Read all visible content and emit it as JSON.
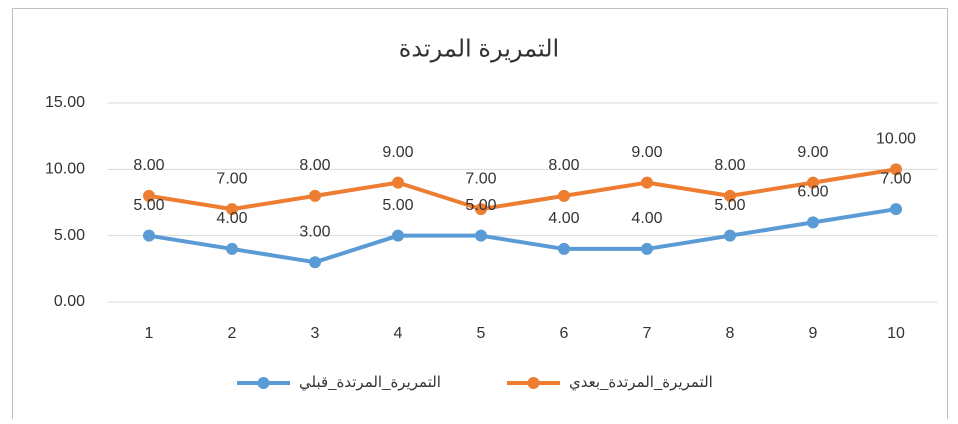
{
  "chart_data": {
    "type": "line",
    "title": "التمريرة المرتدة",
    "categories": [
      1,
      2,
      3,
      4,
      5,
      6,
      7,
      8,
      9,
      10
    ],
    "series": [
      {
        "name": "التمريرة_المرتدة_قبلي",
        "color": "#5b9bd5",
        "values": [
          5,
          4,
          3,
          5,
          5,
          4,
          4,
          5,
          6,
          7
        ],
        "value_labels": [
          "5.00",
          "4.00",
          "3.00",
          "5.00",
          "5.00",
          "4.00",
          "4.00",
          "5.00",
          "6.00",
          "7.00"
        ]
      },
      {
        "name": "التمريرة_المرتدة_بعدي",
        "color": "#ed7d31",
        "values": [
          8,
          7,
          8,
          9,
          7,
          8,
          9,
          8,
          9,
          10
        ],
        "value_labels": [
          "8.00",
          "7.00",
          "8.00",
          "9.00",
          "7.00",
          "8.00",
          "9.00",
          "8.00",
          "9.00",
          "10.00"
        ]
      }
    ],
    "ylim": [
      0,
      15
    ],
    "yticks": [
      {
        "value": 0,
        "label": "0.00"
      },
      {
        "value": 5,
        "label": "5.00"
      },
      {
        "value": 10,
        "label": "10.00"
      },
      {
        "value": 15,
        "label": "15.00"
      }
    ],
    "grid": true,
    "legend": "bottom"
  }
}
